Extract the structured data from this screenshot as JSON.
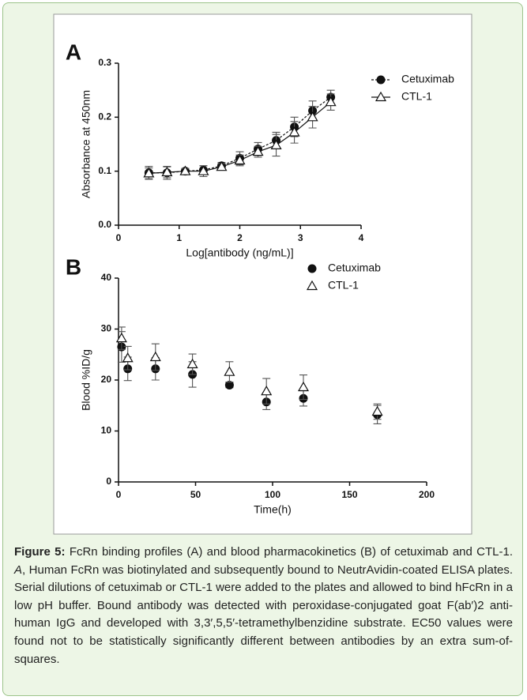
{
  "chart_data": [
    {
      "type": "line",
      "panel_label": "A",
      "x_label": "Log[antibody (ng/mL)]",
      "y_label": "Absorbance at 450nm",
      "x": [
        0.5,
        0.8,
        1.1,
        1.4,
        1.7,
        2.0,
        2.3,
        2.6,
        2.9,
        3.2,
        3.5
      ],
      "series": [
        {
          "name": "Cetuximab",
          "color": "#111111",
          "marker": "circle",
          "dash": "dashed",
          "values": [
            0.097,
            0.097,
            0.1,
            0.102,
            0.11,
            0.124,
            0.141,
            0.157,
            0.182,
            0.212,
            0.237
          ],
          "errors": [
            0.012,
            0.012,
            0.005,
            0.008,
            0.006,
            0.012,
            0.012,
            0.015,
            0.018,
            0.018,
            0.013
          ]
        },
        {
          "name": "CTL-1",
          "color": "#111111",
          "marker": "triangle",
          "dash": "solid",
          "values": [
            0.096,
            0.098,
            0.1,
            0.1,
            0.108,
            0.12,
            0.136,
            0.148,
            0.172,
            0.2,
            0.228
          ],
          "errors": [
            0.01,
            0.01,
            0.005,
            0.01,
            0.006,
            0.01,
            0.01,
            0.02,
            0.02,
            0.02,
            0.015
          ]
        }
      ],
      "xlim": [
        0,
        4
      ],
      "xticks": [
        0,
        1,
        2,
        3,
        4
      ],
      "ylim": [
        0,
        0.3
      ],
      "yticks": [
        {
          "value": 0,
          "label": "0.0"
        },
        0.1,
        0.2,
        0.3
      ],
      "legend": "upper right"
    },
    {
      "type": "scatter",
      "panel_label": "B",
      "x_label": "Time(h)",
      "y_label": "Blood %ID/g",
      "x": [
        2,
        6,
        24,
        48,
        72,
        96,
        120,
        168
      ],
      "series": [
        {
          "name": "Cetuximab",
          "color": "#111111",
          "marker": "circle",
          "values": [
            26.5,
            22.2,
            22.2,
            21.1,
            19.0,
            15.7,
            16.4,
            13.2
          ],
          "errors": [
            3,
            2.3,
            2.2,
            2.5,
            0.5,
            1.5,
            1.5,
            1.8
          ]
        },
        {
          "name": "CTL-1",
          "color": "#111111",
          "marker": "triangle",
          "values": [
            28.2,
            24.3,
            24.5,
            23.1,
            21.6,
            17.8,
            18.6,
            13.8
          ],
          "errors": [
            2.2,
            2.3,
            2.6,
            2,
            2,
            2.5,
            2.4,
            1.5
          ]
        }
      ],
      "xlim": [
        0,
        200
      ],
      "xticks": [
        0,
        50,
        100,
        150,
        200
      ],
      "ylim": [
        0,
        40
      ],
      "yticks": [
        0,
        10,
        20,
        30,
        40
      ],
      "legend": "upper center"
    }
  ],
  "caption": {
    "label": "Figure 5:",
    "text": " FcRn binding profiles (A) and blood pharmacokinetics (B) of cetuximab and CTL-1. ",
    "panel": "A",
    "rest": ", Human FcRn was biotinylated and subsequently bound to NeutrAvidin-coated ELISA plates. Serial dilutions of cetuximab or CTL-1 were added to the plates and allowed to bind hFcRn in a low pH buffer. Bound antibody was detected with peroxidase-conjugated goat F(ab′)2 anti-human IgG and developed with 3,3′,5,5′-tetramethylbenzidine substrate. EC50 values were found not to be statistically significantly different between antibodies by an extra sum-of-squares."
  }
}
